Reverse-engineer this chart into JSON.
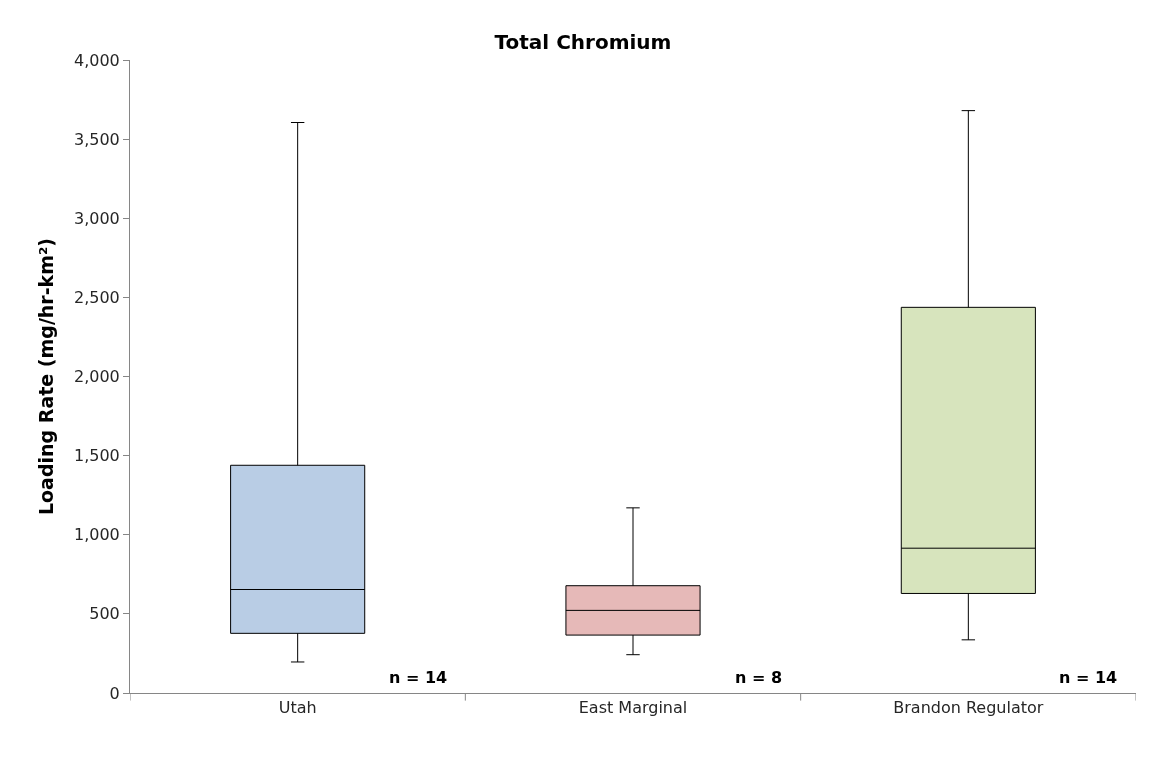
{
  "chart_data": {
    "type": "box",
    "title": "Total Chromium",
    "ylabel": "Loading Rate (mg/hr-km²)",
    "categories": [
      "Utah",
      "East Marginal",
      "Brandon Regulator"
    ],
    "boxes": [
      {
        "low": 196,
        "q1": 377,
        "median": 654,
        "q3": 1439,
        "high": 3605
      },
      {
        "low": 242,
        "q1": 366,
        "median": 522,
        "q3": 678,
        "high": 1170
      },
      {
        "low": 336,
        "q1": 629,
        "median": 915,
        "q3": 2437,
        "high": 3680
      }
    ],
    "colors": [
      "#b9cde5",
      "#e6b9b8",
      "#d7e4bd"
    ],
    "ylim": [
      0,
      4000
    ],
    "yticks": [
      {
        "value": 0,
        "label": "0"
      },
      {
        "value": 500,
        "label": "500"
      },
      {
        "value": 1000,
        "label": "1,000"
      },
      {
        "value": 1500,
        "label": "1,500"
      },
      {
        "value": 2000,
        "label": "2,000"
      },
      {
        "value": 2500,
        "label": "2,500"
      },
      {
        "value": 3000,
        "label": "3,000"
      },
      {
        "value": 3500,
        "label": "3,500"
      },
      {
        "value": 4000,
        "label": "4,000"
      }
    ],
    "legend": false,
    "annotations": [
      "n = 14",
      "n = 8",
      "n = 14"
    ]
  }
}
